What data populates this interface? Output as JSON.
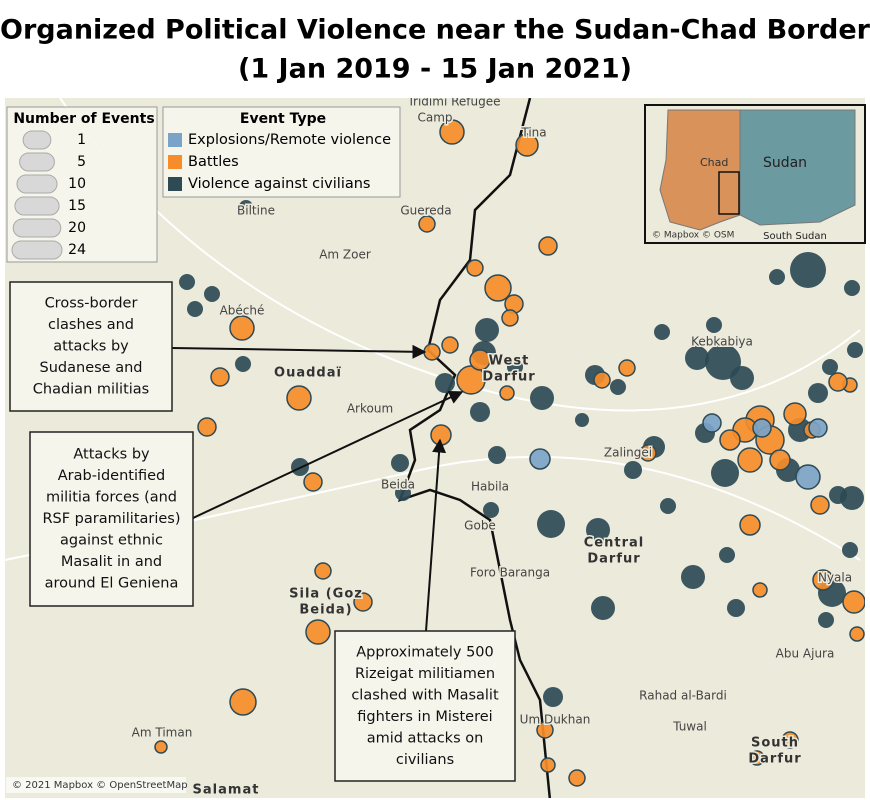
{
  "title": [
    "Organized Political Violence near the Sudan-Chad Border",
    "(1 Jan 2019 - 15 Jan 2021)"
  ],
  "size_legend": {
    "title": "Number of Events",
    "sizes": [
      1,
      5,
      10,
      15,
      20,
      24
    ]
  },
  "type_legend": {
    "title": "Event Type",
    "types": [
      {
        "name": "Explosions/Remote violence",
        "color": "#7ba3c8"
      },
      {
        "name": "Battles",
        "color": "#f68c2a"
      },
      {
        "name": "Violence against civilians",
        "color": "#2d4a55"
      }
    ]
  },
  "places": [
    "Iridimi Refugee",
    "Camp",
    "Tina",
    "Biltine",
    "Guereda",
    "Am Zoer",
    "Abéché",
    "Ouaddaï",
    "Arkoum",
    "West",
    "Darfur",
    "Zalingei",
    "Beida",
    "Habila",
    "Gobe",
    "Foro Baranga",
    "Central",
    "Darfur",
    "Sila (Goz",
    "Beida)",
    "Am Timan",
    "Salamat",
    "Rahad al-Bardi",
    "Tuwal",
    "Um Dukhan",
    "Abu Ajura",
    "Nyala",
    "South",
    "Darfur",
    "Kebkabiya"
  ],
  "annotations": [
    {
      "lines": [
        "Cross-border",
        "clashes and",
        "attacks by",
        "Sudanese and",
        "Chadian militias"
      ]
    },
    {
      "lines": [
        "Attacks by",
        "Arab-identified",
        "militia forces (and",
        "RSF paramilitaries)",
        "against ethnic",
        "Masalit in and",
        "around El Geniena"
      ]
    },
    {
      "lines": [
        "Approximately 500",
        "Rizeigat militiamen",
        "clashed with Masalit",
        "fighters in Misterei",
        "amid attacks on",
        "civilians"
      ]
    }
  ],
  "inset": {
    "chad": "Chad",
    "sudan": "Sudan",
    "south_sudan": "South Sudan",
    "credit": "© Mapbox © OSM"
  },
  "attribution": "© 2021 Mapbox © OpenStreetMap"
}
